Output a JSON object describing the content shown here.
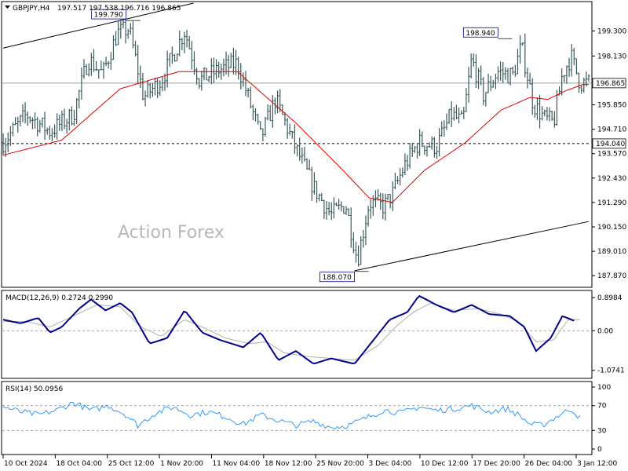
{
  "chart_data": {
    "type": "candlestick",
    "symbol_timeframe": "GBPJPY,H4",
    "ohlc_header": "197.517 197.538 196.716 196.865",
    "watermark": "Action Forex",
    "main": {
      "ylim": [
        187.4,
        200.6
      ],
      "y_ticks": [
        "199.300",
        "198.130",
        "196.950",
        "195.850",
        "194.710",
        "193.570",
        "192.430",
        "191.290",
        "190.150",
        "189.010",
        "187.870"
      ],
      "current_price": "196.865",
      "horizontal_level": "194.040",
      "annotations": [
        {
          "text": "199.790",
          "x": 0.21,
          "price": 199.79
        },
        {
          "text": "198.940",
          "x": 0.845,
          "price": 198.94
        },
        {
          "text": "188.070",
          "x": 0.6,
          "price": 188.07
        }
      ],
      "close_anchors": [
        [
          0,
          194.1
        ],
        [
          0.04,
          195.4
        ],
        [
          0.08,
          194.6
        ],
        [
          0.12,
          195.4
        ],
        [
          0.145,
          198.0
        ],
        [
          0.17,
          197.3
        ],
        [
          0.195,
          199.2
        ],
        [
          0.215,
          199.4
        ],
        [
          0.24,
          196.2
        ],
        [
          0.27,
          197.0
        ],
        [
          0.31,
          199.3
        ],
        [
          0.335,
          197.0
        ],
        [
          0.37,
          197.5
        ],
        [
          0.4,
          197.8
        ],
        [
          0.44,
          194.3
        ],
        [
          0.465,
          196.1
        ],
        [
          0.5,
          193.8
        ],
        [
          0.53,
          192.0
        ],
        [
          0.56,
          190.7
        ],
        [
          0.585,
          191.2
        ],
        [
          0.605,
          188.6
        ],
        [
          0.625,
          191.3
        ],
        [
          0.65,
          191.1
        ],
        [
          0.665,
          191.7
        ],
        [
          0.685,
          193.0
        ],
        [
          0.71,
          194.1
        ],
        [
          0.74,
          193.9
        ],
        [
          0.765,
          195.4
        ],
        [
          0.785,
          195.0
        ],
        [
          0.8,
          198.0
        ],
        [
          0.82,
          196.3
        ],
        [
          0.845,
          197.4
        ],
        [
          0.87,
          197.2
        ],
        [
          0.885,
          198.6
        ],
        [
          0.905,
          195.9
        ],
        [
          0.925,
          195.2
        ],
        [
          0.94,
          195.0
        ],
        [
          0.955,
          197.3
        ],
        [
          0.97,
          198.1
        ],
        [
          0.985,
          196.87
        ]
      ],
      "ma_anchors": [
        [
          0,
          193.5
        ],
        [
          0.1,
          194.2
        ],
        [
          0.2,
          196.6
        ],
        [
          0.3,
          197.4
        ],
        [
          0.4,
          197.4
        ],
        [
          0.5,
          195.0
        ],
        [
          0.58,
          192.8
        ],
        [
          0.625,
          191.5
        ],
        [
          0.665,
          191.3
        ],
        [
          0.72,
          192.8
        ],
        [
          0.79,
          194.1
        ],
        [
          0.85,
          195.6
        ],
        [
          0.9,
          196.2
        ],
        [
          0.93,
          196.1
        ],
        [
          0.96,
          196.5
        ],
        [
          0.99,
          196.8
        ]
      ],
      "trend_lines": [
        {
          "from": [
            0,
            198.5
          ],
          "to": [
            0.325,
            200.6
          ]
        },
        {
          "from": [
            0.6,
            188.1
          ],
          "to": [
            1,
            190.4
          ]
        }
      ]
    },
    "macd": {
      "title": "MACD(12,26,9) 0.2724 0.2990",
      "ylim": [
        -1.25,
        1.05
      ],
      "y_ticks": [
        "0.8984",
        "0.00",
        "-1.0741"
      ],
      "main_anchors": [
        [
          0,
          0.3
        ],
        [
          0.03,
          0.2
        ],
        [
          0.06,
          0.35
        ],
        [
          0.08,
          -0.05
        ],
        [
          0.1,
          0.1
        ],
        [
          0.13,
          0.6
        ],
        [
          0.15,
          0.85
        ],
        [
          0.175,
          0.55
        ],
        [
          0.2,
          0.75
        ],
        [
          0.22,
          0.5
        ],
        [
          0.25,
          -0.35
        ],
        [
          0.28,
          -0.2
        ],
        [
          0.31,
          0.55
        ],
        [
          0.34,
          -0.05
        ],
        [
          0.37,
          -0.25
        ],
        [
          0.41,
          -0.45
        ],
        [
          0.44,
          -0.05
        ],
        [
          0.47,
          -0.8
        ],
        [
          0.5,
          -0.55
        ],
        [
          0.53,
          -0.9
        ],
        [
          0.56,
          -0.75
        ],
        [
          0.6,
          -0.9
        ],
        [
          0.63,
          -0.3
        ],
        [
          0.66,
          0.3
        ],
        [
          0.69,
          0.5
        ],
        [
          0.71,
          0.95
        ],
        [
          0.74,
          0.7
        ],
        [
          0.77,
          0.5
        ],
        [
          0.8,
          0.7
        ],
        [
          0.83,
          0.45
        ],
        [
          0.865,
          0.4
        ],
        [
          0.89,
          0.1
        ],
        [
          0.91,
          -0.55
        ],
        [
          0.935,
          -0.2
        ],
        [
          0.955,
          0.4
        ],
        [
          0.975,
          0.27
        ]
      ],
      "signal_anchors": [
        [
          0,
          0.25
        ],
        [
          0.04,
          0.25
        ],
        [
          0.08,
          0.1
        ],
        [
          0.12,
          0.4
        ],
        [
          0.16,
          0.7
        ],
        [
          0.2,
          0.65
        ],
        [
          0.235,
          0.1
        ],
        [
          0.27,
          -0.15
        ],
        [
          0.31,
          0.3
        ],
        [
          0.34,
          0.1
        ],
        [
          0.38,
          -0.2
        ],
        [
          0.42,
          -0.35
        ],
        [
          0.45,
          -0.3
        ],
        [
          0.48,
          -0.6
        ],
        [
          0.52,
          -0.7
        ],
        [
          0.56,
          -0.75
        ],
        [
          0.6,
          -0.8
        ],
        [
          0.64,
          -0.4
        ],
        [
          0.67,
          0.1
        ],
        [
          0.7,
          0.5
        ],
        [
          0.73,
          0.75
        ],
        [
          0.77,
          0.55
        ],
        [
          0.81,
          0.6
        ],
        [
          0.85,
          0.45
        ],
        [
          0.88,
          0.25
        ],
        [
          0.91,
          -0.3
        ],
        [
          0.94,
          -0.25
        ],
        [
          0.965,
          0.3
        ],
        [
          0.985,
          0.3
        ]
      ]
    },
    "rsi": {
      "title": "RSI(14) 50.0956",
      "ylim": [
        0,
        100
      ],
      "y_ticks": [
        "100",
        "70",
        "30",
        "0"
      ],
      "anchors": [
        [
          0,
          68
        ],
        [
          0.03,
          60
        ],
        [
          0.06,
          55
        ],
        [
          0.09,
          62
        ],
        [
          0.12,
          75
        ],
        [
          0.15,
          62
        ],
        [
          0.18,
          70
        ],
        [
          0.21,
          55
        ],
        [
          0.23,
          38
        ],
        [
          0.26,
          58
        ],
        [
          0.29,
          68
        ],
        [
          0.32,
          55
        ],
        [
          0.35,
          60
        ],
        [
          0.38,
          52
        ],
        [
          0.41,
          40
        ],
        [
          0.44,
          55
        ],
        [
          0.47,
          46
        ],
        [
          0.5,
          38
        ],
        [
          0.53,
          45
        ],
        [
          0.56,
          35
        ],
        [
          0.59,
          38
        ],
        [
          0.62,
          50
        ],
        [
          0.65,
          63
        ],
        [
          0.68,
          58
        ],
        [
          0.71,
          68
        ],
        [
          0.74,
          62
        ],
        [
          0.77,
          65
        ],
        [
          0.8,
          70
        ],
        [
          0.83,
          60
        ],
        [
          0.86,
          65
        ],
        [
          0.88,
          55
        ],
        [
          0.9,
          40
        ],
        [
          0.92,
          38
        ],
        [
          0.95,
          55
        ],
        [
          0.97,
          65
        ],
        [
          0.985,
          50
        ]
      ]
    },
    "x_labels": [
      "10 Oct 2024",
      "18 Oct 04:00",
      "25 Oct 12:00",
      "1 Nov 20:00",
      "11 Nov 04:00",
      "18 Nov 12:00",
      "25 Nov 20:00",
      "3 Dec 04:00",
      "10 Dec 12:00",
      "17 Dec 20:00",
      "26 Dec 04:00",
      "3 Jan 12:00"
    ]
  }
}
